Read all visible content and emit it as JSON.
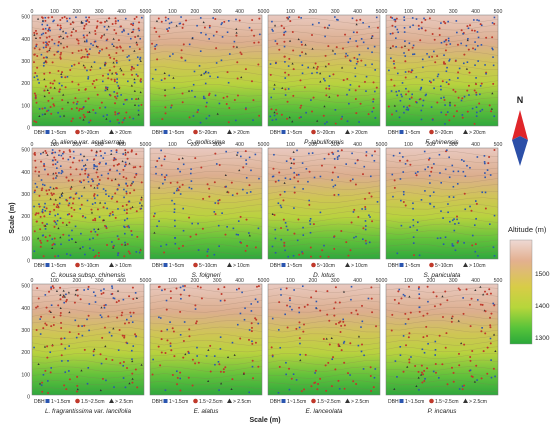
{
  "axis": {
    "x_ticks": [
      "0",
      "100",
      "200",
      "300",
      "400",
      "500"
    ],
    "y_ticks": [
      "500",
      "400",
      "300",
      "200",
      "100",
      "0"
    ],
    "y_label": "Scale (m)",
    "x_label": "Scale (m)"
  },
  "legend": {
    "prefix": "DBH",
    "row1": [
      "1~5cm",
      "5~20cm",
      "> 20cm"
    ],
    "row2": [
      "1~5cm",
      "5~10cm",
      "> 10cm"
    ],
    "row3": [
      "1~1.5cm",
      "1.5~2.5cm",
      "> 2.5cm"
    ]
  },
  "panels": [
    {
      "species": "Q. aliena var. acutiserrata",
      "row": 1,
      "density": 1.0,
      "mix": [
        0.25,
        0.6,
        0.15
      ]
    },
    {
      "species": "C. mollissima",
      "row": 1,
      "density": 0.35,
      "mix": [
        0.5,
        0.4,
        0.1
      ]
    },
    {
      "species": "P. tabuliformis",
      "row": 1,
      "density": 0.45,
      "mix": [
        0.45,
        0.4,
        0.15
      ]
    },
    {
      "species": "F. chinensis",
      "row": 1,
      "density": 0.6,
      "mix": [
        0.6,
        0.35,
        0.05
      ]
    },
    {
      "species": "C. kousa subsp. chinensis",
      "row": 2,
      "density": 0.95,
      "mix": [
        0.45,
        0.45,
        0.1
      ]
    },
    {
      "species": "S. folgneri",
      "row": 2,
      "density": 0.3,
      "mix": [
        0.55,
        0.4,
        0.05
      ]
    },
    {
      "species": "D. lotus",
      "row": 2,
      "density": 0.35,
      "mix": [
        0.5,
        0.45,
        0.05
      ]
    },
    {
      "species": "S. paniculata",
      "row": 2,
      "density": 0.3,
      "mix": [
        0.8,
        0.2,
        0.0
      ]
    },
    {
      "species": "L. fragrantissima var. lancifolia",
      "row": 3,
      "density": 0.45,
      "mix": [
        0.4,
        0.45,
        0.15
      ]
    },
    {
      "species": "E. alatus",
      "row": 3,
      "density": 0.3,
      "mix": [
        0.35,
        0.55,
        0.1
      ]
    },
    {
      "species": "E. lanceolata",
      "row": 3,
      "density": 0.3,
      "mix": [
        0.35,
        0.55,
        0.1
      ]
    },
    {
      "species": "P. incanus",
      "row": 3,
      "density": 0.35,
      "mix": [
        0.25,
        0.65,
        0.1
      ]
    }
  ],
  "compass": {
    "label": "N"
  },
  "altitude": {
    "title": "Altitude (m)",
    "ticks": [
      "1500",
      "1400",
      "1300"
    ],
    "colors": [
      "#e8d2cc",
      "#e0a27a",
      "#d2cf45",
      "#b9d83b",
      "#56c33a",
      "#2aa83a"
    ]
  },
  "marker_colors": {
    "small": "#2a55b0",
    "medium": "#c0392b",
    "large": "#333333"
  }
}
